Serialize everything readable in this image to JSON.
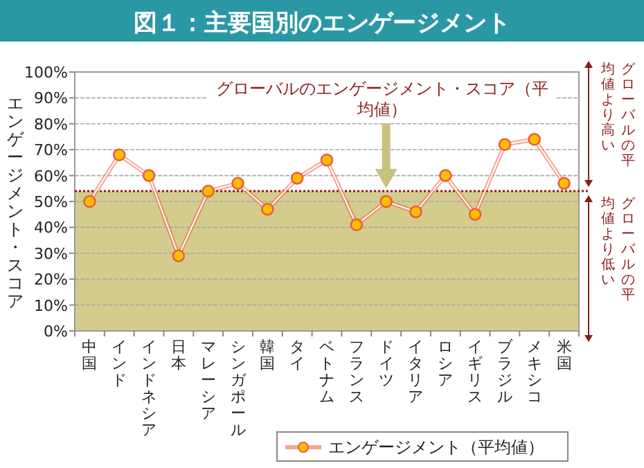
{
  "chart_data": {
    "type": "line",
    "title": "図１：主要国別のエンゲージメント",
    "ylabel": "エンゲージメント・スコア",
    "categories": [
      "中国",
      "インド",
      "インドネシア",
      "日本",
      "マレーシア",
      "シンガポール",
      "韓国",
      "タイ",
      "ベトナム",
      "フランス",
      "ドイツ",
      "イタリア",
      "ロシア",
      "イギリス",
      "ブラジル",
      "メキシコ",
      "米国"
    ],
    "series": [
      {
        "name": "エンゲージメント（平均値）",
        "color": "#f05a3c",
        "values": [
          50,
          68,
          60,
          29,
          54,
          57,
          47,
          59,
          66,
          41,
          50,
          46,
          60,
          45,
          72,
          74,
          57
        ]
      }
    ],
    "ylim": [
      0,
      100
    ],
    "yticks": [
      {
        "value": 0,
        "label": "0%"
      },
      {
        "value": 10,
        "label": "10%"
      },
      {
        "value": 20,
        "label": "20%"
      },
      {
        "value": 30,
        "label": "30%"
      },
      {
        "value": 40,
        "label": "40%"
      },
      {
        "value": 50,
        "label": "50%"
      },
      {
        "value": 60,
        "label": "60%"
      },
      {
        "value": 70,
        "label": "70%"
      },
      {
        "value": 80,
        "label": "80%"
      },
      {
        "value": 90,
        "label": "90%"
      },
      {
        "value": 100,
        "label": "100%"
      }
    ],
    "ref_lines": [
      {
        "axis": "y",
        "value": 54,
        "label": "グローバルのエンゲージメント・スコア（平均値）",
        "color": "#8b1a1a",
        "line_style": "dotted"
      }
    ],
    "bands": [
      {
        "axis": "y",
        "from": 0,
        "to": 54,
        "color": "#d4cc8c"
      }
    ],
    "annotations": [
      "グローバルの平均値より高い",
      "グローバルの平均値より低い"
    ],
    "grid": "y",
    "legend": "bottom right",
    "marker": "circle",
    "line_style": "solid"
  }
}
